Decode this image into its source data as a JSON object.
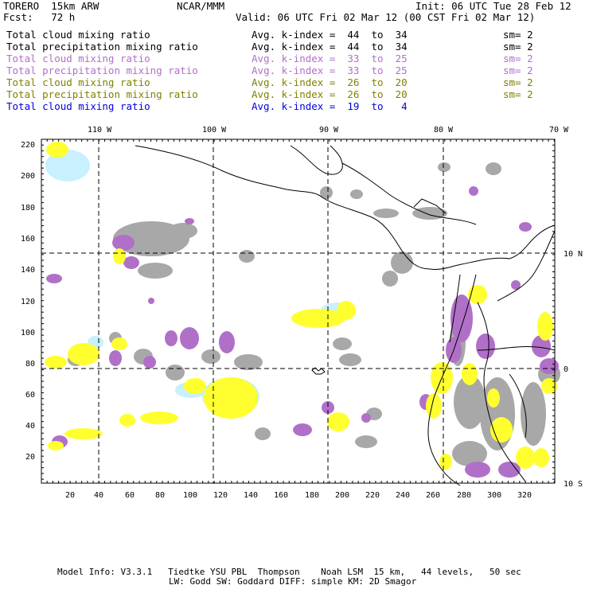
{
  "header": {
    "model_name": "TORERO  15km ARW",
    "org": "NCAR/MMM",
    "init": "Init: 06 UTC Tue 28 Feb 12",
    "fcst": "Fcst:   72 h",
    "valid": "Valid: 06 UTC Fri 02 Mar 12 (00 CST Fri 02 Mar 12)"
  },
  "legend_rows": [
    {
      "field": "Total cloud mixing ratio",
      "kindex": "Avg. k-index =  44  to  34",
      "sm": "sm= 2",
      "color": "#000000"
    },
    {
      "field": "Total precipitation mixing ratio",
      "kindex": "Avg. k-index =  44  to  34",
      "sm": "sm= 2",
      "color": "#000000"
    },
    {
      "field": "Total cloud mixing ratio",
      "kindex": "Avg. k-index =  33  to  25",
      "sm": "sm= 2",
      "color": "#b070c8"
    },
    {
      "field": "Total precipitation mixing ratio",
      "kindex": "Avg. k-index =  33  to  25",
      "sm": "sm= 2",
      "color": "#b070c8"
    },
    {
      "field": "Total cloud mixing ratio",
      "kindex": "Avg. k-index =  26  to  20",
      "sm": "sm= 2",
      "color": "#808000"
    },
    {
      "field": "Total precipitation mixing ratio",
      "kindex": "Avg. k-index =  26  to  20",
      "sm": "sm= 2",
      "color": "#808000"
    },
    {
      "field": "Total cloud mixing ratio",
      "kindex": "Avg. k-index =  19  to   4",
      "sm": "",
      "color": "#0000e0"
    }
  ],
  "map": {
    "top_lon_labels": [
      "110 W",
      "100 W",
      "90 W",
      "80 W",
      "70 W"
    ],
    "right_lat_labels": [
      "10 N",
      "0",
      "10 S"
    ],
    "x_grid_labels": [
      "20",
      "40",
      "60",
      "80",
      "100",
      "120",
      "140",
      "160",
      "180",
      "200",
      "220",
      "240",
      "260",
      "280",
      "300",
      "320"
    ],
    "y_grid_labels": [
      "220",
      "200",
      "180",
      "160",
      "140",
      "120",
      "100",
      "80",
      "60",
      "40",
      "20"
    ],
    "colors": {
      "gray": "#a8a8a8",
      "purple": "#b070c8",
      "yellow": "#ffff30",
      "light_blue": "#c8f0ff"
    }
  },
  "footer": {
    "line1": "Model Info: V3.3.1   Tiedtke YSU PBL  Thompson    Noah LSM  15 km,   44 levels,   50 sec",
    "line2": "LW: Godd SW: Goddard DIFF: simple KM: 2D Smagor"
  }
}
